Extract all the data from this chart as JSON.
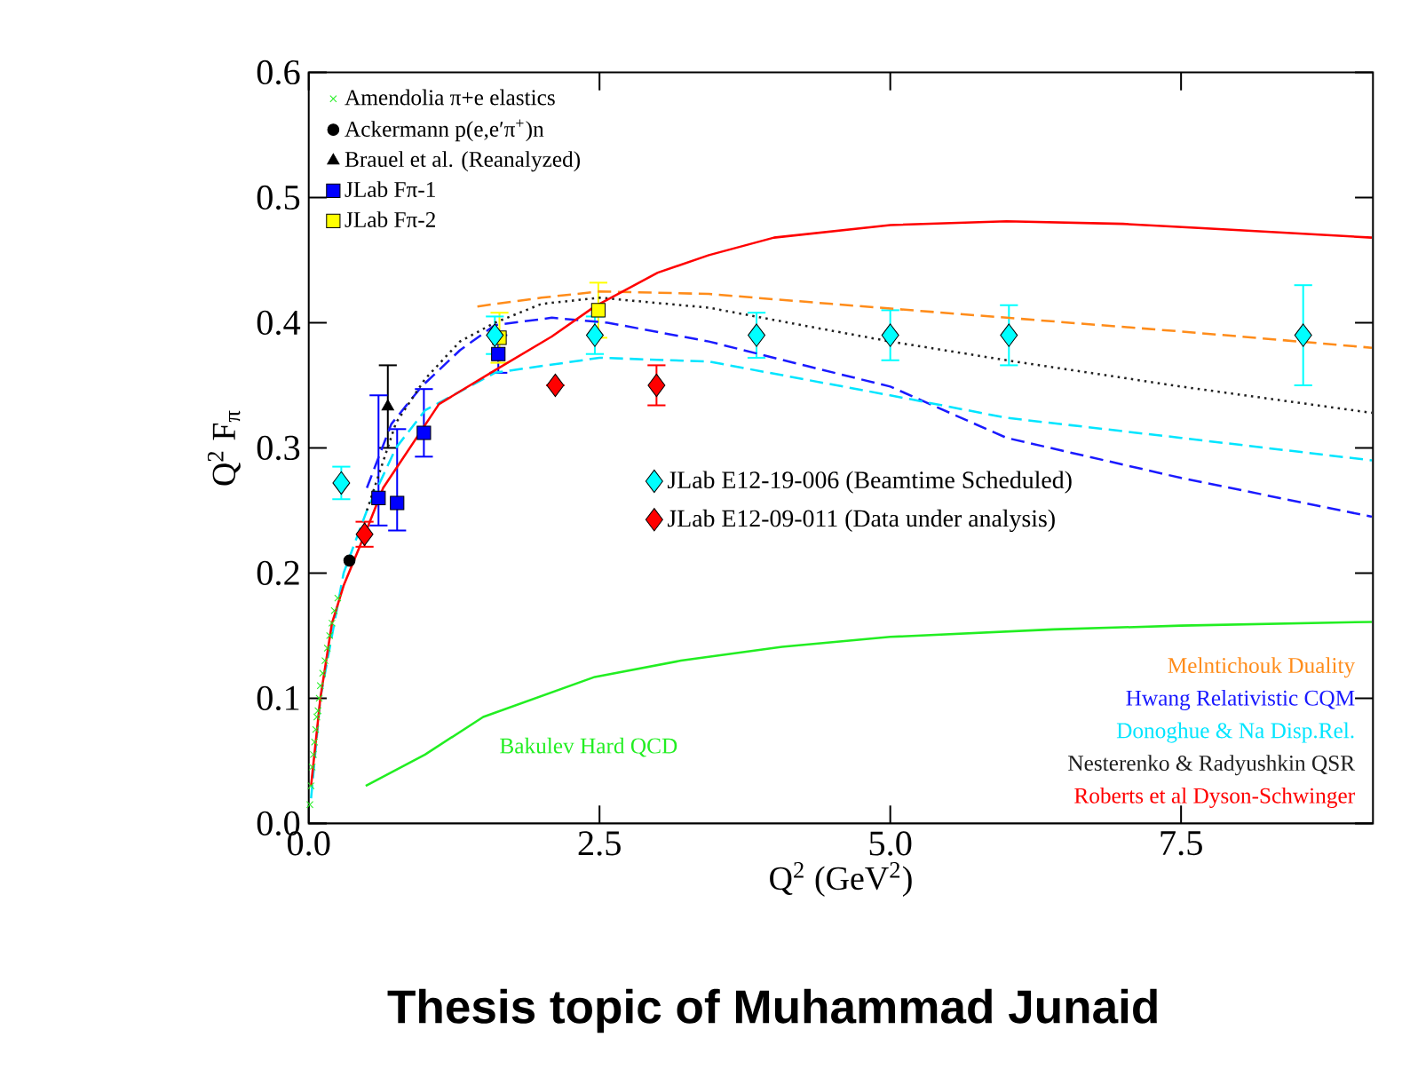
{
  "chart_data": {
    "type": "line",
    "xlabel": "Q$^{2}$ (GeV$^{2}$)",
    "ylabel": "Q$^{2}$ F$_{π}$",
    "xlim": [
      0,
      9.15
    ],
    "ylim": [
      0,
      0.6
    ],
    "xticks": [
      {
        "value": 0,
        "label": "0.0"
      },
      {
        "value": 2.5,
        "label": "2.5"
      },
      {
        "value": 5,
        "label": "5.0"
      },
      {
        "value": 7.5,
        "label": "7.5"
      }
    ],
    "yticks": [
      {
        "value": 0,
        "label": "0.0"
      },
      {
        "value": 0.1,
        "label": "0.1"
      },
      {
        "value": 0.2,
        "label": "0.2"
      },
      {
        "value": 0.3,
        "label": "0.3"
      },
      {
        "value": 0.4,
        "label": "0.4"
      },
      {
        "value": 0.5,
        "label": "0.5"
      },
      {
        "value": 0.6,
        "label": "0.6"
      }
    ],
    "legend": "top left",
    "annotations": [
      "Thesis topic of Muhammad Junaid"
    ],
    "series": [
      {
        "name": "Amendolia π+e elastics",
        "type": "scatter",
        "marker": "cross",
        "color": "#22ee22",
        "x": [
          0.01,
          0.02,
          0.03,
          0.04,
          0.05,
          0.06,
          0.07,
          0.08,
          0.09,
          0.1,
          0.12,
          0.14,
          0.16,
          0.18,
          0.2,
          0.22,
          0.25
        ],
        "values": [
          0.015,
          0.03,
          0.045,
          0.055,
          0.065,
          0.075,
          0.085,
          0.09,
          0.1,
          0.11,
          0.12,
          0.13,
          0.14,
          0.15,
          0.16,
          0.17,
          0.18
        ]
      },
      {
        "name": "Ackermann p(e,e′π$^{+}$)n",
        "type": "scatter",
        "marker": "circle",
        "color": "#000000",
        "x": [
          0.35
        ],
        "values": [
          0.21
        ]
      },
      {
        "name": "Brauel et al. (Reanalyzed)",
        "type": "scatter",
        "marker": "triangle",
        "color": "#000000",
        "x": [
          0.68
        ],
        "values": [
          0.333
        ],
        "errors": [
          0.033
        ]
      },
      {
        "name": "JLab Fπ-1",
        "type": "scatter",
        "marker": "square",
        "color": "#0000ff",
        "x": [
          0.6,
          0.76,
          0.99,
          1.63
        ],
        "values": [
          0.26,
          0.256,
          0.312,
          0.375
        ],
        "errors": [
          [
            0.238,
            0.342
          ],
          [
            0.234,
            0.315
          ],
          [
            0.293,
            0.347
          ],
          0.015
        ]
      },
      {
        "name": "JLab Fπ-2",
        "type": "scatter",
        "marker": "square",
        "color": "#ffff00",
        "x": [
          1.64,
          2.49
        ],
        "values": [
          0.388,
          0.41
        ],
        "errors": [
          0.02,
          0.022
        ]
      },
      {
        "name": "JLab E12-19-006 (Beamtime Scheduled)",
        "type": "scatter",
        "marker": "diamond",
        "color": "#00ffff",
        "x": [
          0.28,
          1.6,
          2.46,
          3.85,
          5.0,
          6.02,
          8.55
        ],
        "values": [
          0.272,
          0.39,
          0.39,
          0.39,
          0.39,
          0.39,
          0.39
        ],
        "errors": [
          0.013,
          0.015,
          0.015,
          0.018,
          0.02,
          0.024,
          0.04
        ]
      },
      {
        "name": "JLab E12-09-011 (Data under analysis)",
        "type": "scatter",
        "marker": "diamond",
        "color": "#ff0000",
        "x": [
          0.48,
          2.12,
          2.99
        ],
        "values": [
          0.231,
          0.35,
          0.35
        ],
        "errors": [
          0.01,
          null,
          0.016
        ]
      },
      {
        "name": "Melntichouk Duality",
        "line_style": "dashed",
        "color": "#ff8c1a",
        "x": [
          1.45,
          2.0,
          2.5,
          3.44,
          4.5,
          6.0,
          7.5,
          9.14
        ],
        "values": [
          0.413,
          0.42,
          0.425,
          0.423,
          0.415,
          0.404,
          0.393,
          0.38
        ]
      },
      {
        "name": "Hwang Relativistic CQM",
        "line_style": "dashed",
        "color": "#1a1aff",
        "x": [
          0.5,
          0.71,
          0.97,
          1.3,
          1.6,
          2.09,
          2.57,
          3.44,
          4.3,
          5.0,
          6.0,
          7.5,
          9.14
        ],
        "values": [
          0.268,
          0.319,
          0.349,
          0.378,
          0.398,
          0.404,
          0.4,
          0.385,
          0.365,
          0.349,
          0.308,
          0.276,
          0.245
        ]
      },
      {
        "name": "Donoghue & Na Disp.Rel.",
        "line_style": "dashed",
        "color": "#00e5ff",
        "x": [
          0.02,
          0.1,
          0.3,
          0.5,
          0.75,
          1.0,
          1.6,
          2.5,
          3.44,
          5.0,
          6.0,
          7.5,
          9.14
        ],
        "values": [
          0.02,
          0.1,
          0.2,
          0.25,
          0.3,
          0.33,
          0.36,
          0.372,
          0.369,
          0.342,
          0.324,
          0.308,
          0.29
        ]
      },
      {
        "name": "Nesterenko & Radyushkin QSR",
        "line_style": "dotted",
        "color": "#202020",
        "x": [
          0.5,
          0.75,
          1.0,
          1.3,
          1.6,
          2.0,
          2.5,
          3.44,
          4.3,
          5.0,
          6.0,
          7.5,
          9.14
        ],
        "values": [
          0.25,
          0.32,
          0.355,
          0.385,
          0.4,
          0.415,
          0.42,
          0.412,
          0.397,
          0.385,
          0.37,
          0.349,
          0.328
        ]
      },
      {
        "name": "Roberts et al Dyson-Schwinger",
        "line_style": "solid",
        "color": "#ff0000",
        "x": [
          0.02,
          0.1,
          0.2,
          0.3,
          0.5,
          0.64,
          1.12,
          1.6,
          2.09,
          2.46,
          3.0,
          3.44,
          4.0,
          5.0,
          6.0,
          7.0,
          8.0,
          9.14
        ],
        "values": [
          0.03,
          0.1,
          0.16,
          0.19,
          0.235,
          0.268,
          0.335,
          0.362,
          0.389,
          0.413,
          0.44,
          0.454,
          0.468,
          0.478,
          0.481,
          0.479,
          0.474,
          0.468
        ]
      },
      {
        "name": "Bakulev Hard QCD",
        "line_style": "solid",
        "color": "#22ee22",
        "x": [
          0.49,
          1.0,
          1.5,
          2.46,
          3.2,
          4.07,
          5.0,
          6.4,
          7.5,
          9.14
        ],
        "values": [
          0.03,
          0.055,
          0.085,
          0.117,
          0.13,
          0.141,
          0.149,
          0.155,
          0.158,
          0.161
        ]
      }
    ]
  }
}
